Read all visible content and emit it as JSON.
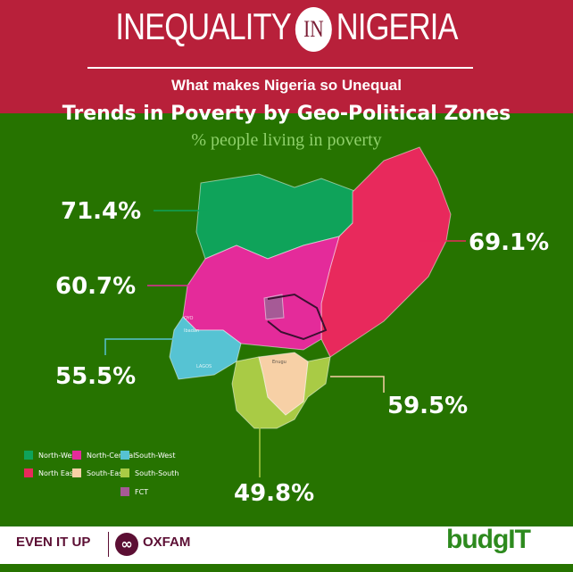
{
  "header": {
    "title_left": "INEQUALITY",
    "title_in": "IN",
    "title_right": "NIGERIA",
    "subtitle": "What makes Nigeria so Unequal"
  },
  "main": {
    "title": "Trends in Poverty by Geo-Political Zones",
    "subtitle": "% people living in poverty"
  },
  "zones": [
    {
      "name": "North-West",
      "poverty": "71.4%",
      "color": "#0fa35a"
    },
    {
      "name": "North East",
      "poverty": "69.1%",
      "color": "#e8295c"
    },
    {
      "name": "North-Central",
      "poverty": "60.7%",
      "color": "#e42b9a"
    },
    {
      "name": "South-West",
      "poverty": "55.5%",
      "color": "#56c3d3"
    },
    {
      "name": "South-East",
      "poverty": "59.5%",
      "color": "#f7d0a6"
    },
    {
      "name": "South-South",
      "poverty": "49.8%",
      "color": "#a9cb45"
    },
    {
      "name": "FCT",
      "color": "#a65a96"
    }
  ],
  "map_labels": {
    "oyo": "OYO",
    "ibadan": "Ibadan",
    "lagos": "LAGOS",
    "enugu": "Enugu"
  },
  "footer": {
    "campaign": "EVEN IT UP",
    "org": "OXFAM",
    "partner": "budgIT"
  }
}
